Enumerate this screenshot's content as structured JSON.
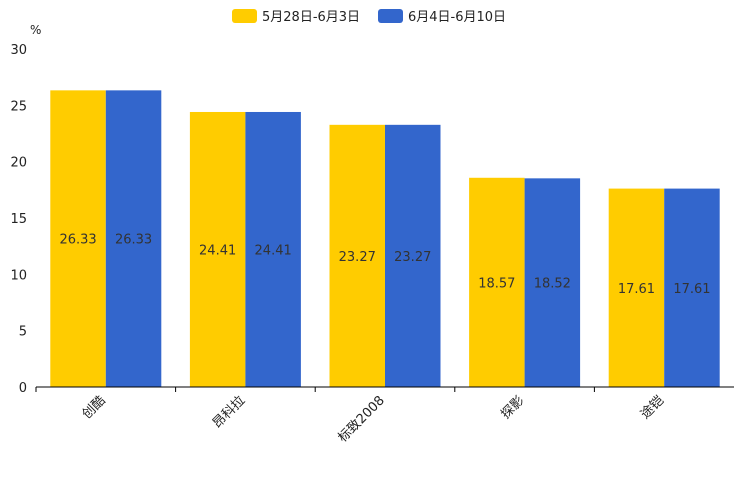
{
  "chart_data": {
    "type": "bar",
    "title": "",
    "xlabel": "",
    "ylabel": "%",
    "ylim": [
      0,
      30
    ],
    "yticks": [
      0,
      5,
      10,
      15,
      20,
      25,
      30
    ],
    "grid": false,
    "legend_position": "top-center",
    "categories": [
      "创酷",
      "昂科拉",
      "标致2008",
      "探影",
      "途铠"
    ],
    "series": [
      {
        "name": "5月28日-6月3日",
        "color": "#ffcc00",
        "values": [
          26.33,
          24.41,
          23.27,
          18.57,
          17.61
        ]
      },
      {
        "name": "6月4日-6月10日",
        "color": "#3366cc",
        "values": [
          26.33,
          24.41,
          23.27,
          18.52,
          17.61
        ]
      }
    ]
  }
}
